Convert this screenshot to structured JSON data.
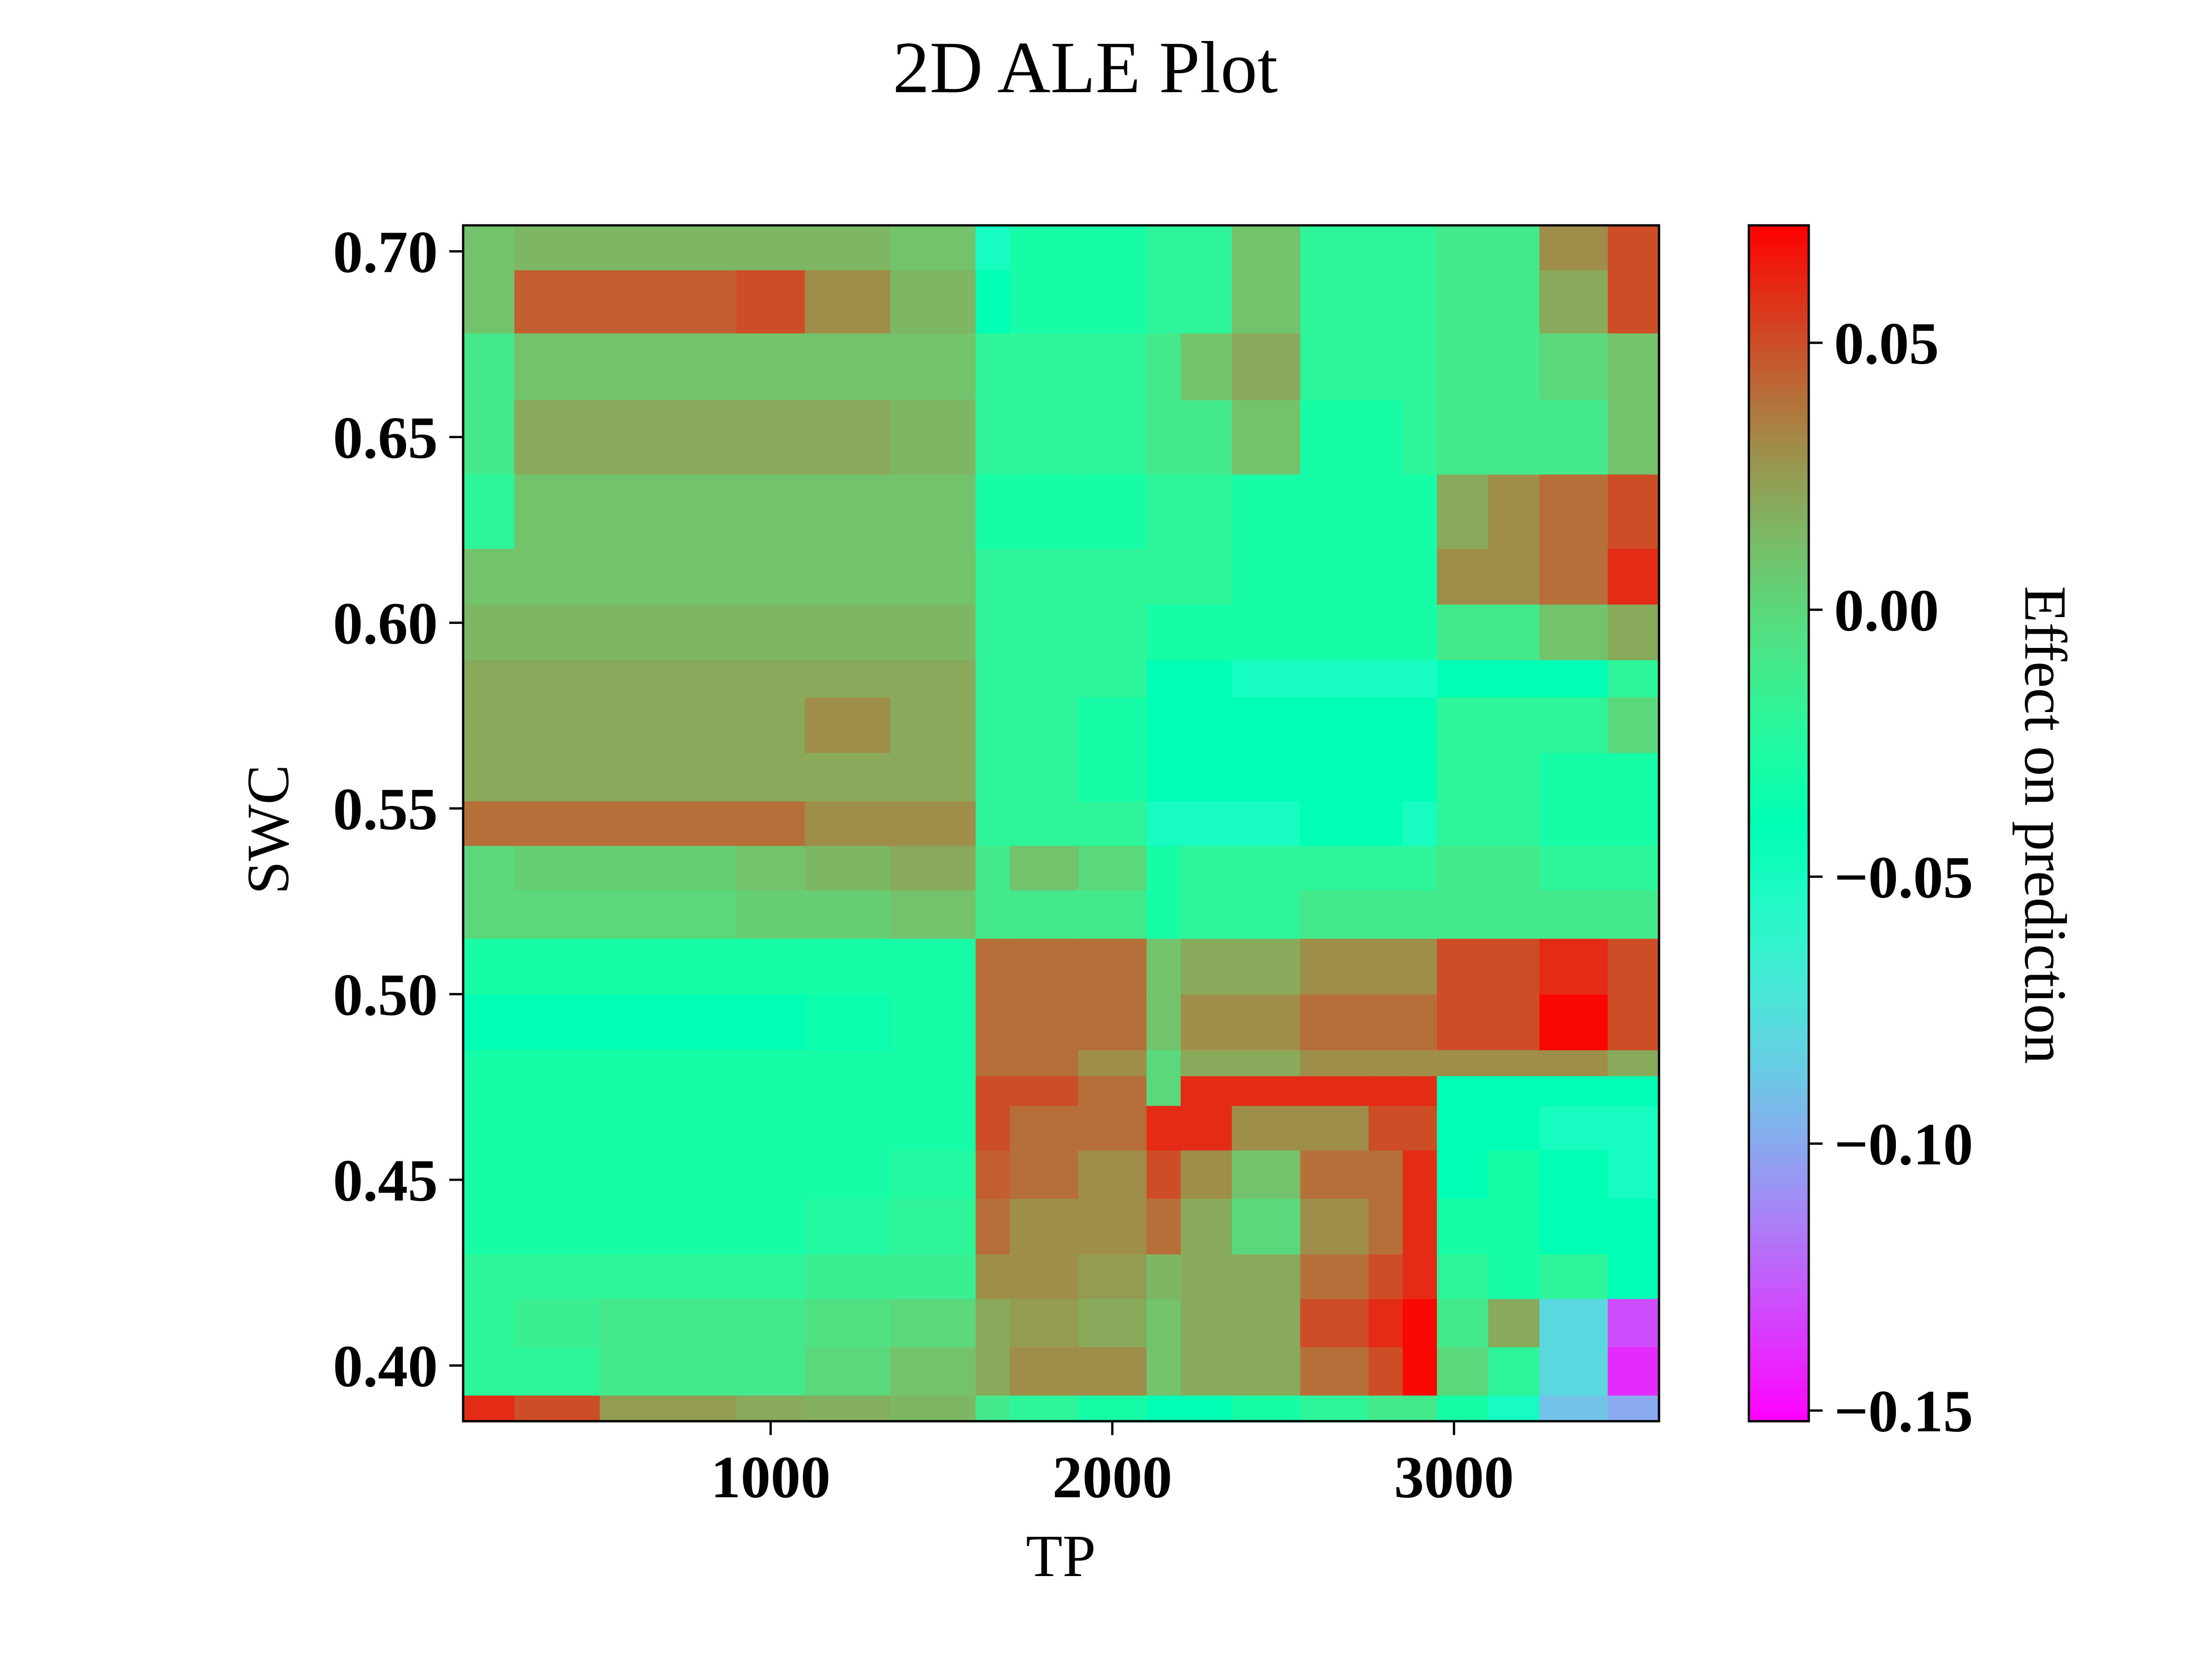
{
  "chart_data": {
    "type": "heatmap",
    "title": "2D ALE Plot",
    "xlabel": "TP",
    "ylabel": "SWC",
    "colorbar_label": "Effect on prediction",
    "colormap": "rainbow",
    "xlim": [
      100,
      3600
    ],
    "ylim": [
      0.385,
      0.707
    ],
    "clim": [
      -0.152,
      0.072
    ],
    "x_ticks": [
      1000,
      2000,
      3000
    ],
    "x_tick_labels": [
      "1000",
      "2000",
      "3000"
    ],
    "y_ticks": [
      0.4,
      0.45,
      0.5,
      0.55,
      0.6,
      0.65,
      0.7
    ],
    "y_tick_labels": [
      "0.40",
      "0.45",
      "0.50",
      "0.55",
      "0.60",
      "0.65",
      "0.70"
    ],
    "colorbar_ticks": [
      -0.15,
      -0.1,
      -0.05,
      0.0,
      0.05
    ],
    "colorbar_tick_labels": [
      "−0.15",
      "−0.10",
      "−0.05",
      "0.00",
      "0.05"
    ],
    "x_edges": [
      100,
      250,
      500,
      900,
      1100,
      1350,
      1600,
      1700,
      1900,
      2100,
      2200,
      2350,
      2550,
      2750,
      2850,
      2950,
      3100,
      3250,
      3450,
      3600
    ],
    "y_edges": [
      0.385,
      0.392,
      0.405,
      0.418,
      0.43,
      0.445,
      0.458,
      0.47,
      0.478,
      0.485,
      0.5,
      0.515,
      0.528,
      0.54,
      0.552,
      0.565,
      0.58,
      0.59,
      0.605,
      0.62,
      0.64,
      0.66,
      0.678,
      0.695,
      0.707
    ],
    "z": [
      [
        0.06,
        0.05,
        0.025,
        0.02,
        0.018,
        0.015,
        -0.01,
        -0.02,
        -0.03,
        -0.04,
        -0.04,
        -0.03,
        -0.02,
        -0.01,
        -0.01,
        -0.03,
        -0.05,
        -0.09,
        -0.1
      ],
      [
        -0.02,
        -0.02,
        -0.01,
        -0.01,
        0.0,
        0.01,
        0.02,
        0.03,
        0.03,
        0.01,
        0.02,
        0.02,
        0.04,
        0.05,
        0.07,
        0.0,
        -0.02,
        -0.08,
        -0.14
      ],
      [
        -0.02,
        -0.015,
        -0.01,
        -0.01,
        -0.005,
        0.0,
        0.02,
        0.025,
        0.02,
        0.01,
        0.02,
        0.02,
        0.05,
        0.06,
        0.07,
        -0.01,
        0.02,
        -0.08,
        -0.13
      ],
      [
        -0.02,
        -0.02,
        -0.02,
        -0.02,
        -0.015,
        -0.015,
        0.03,
        0.03,
        0.025,
        0.015,
        0.02,
        0.02,
        0.04,
        0.05,
        0.06,
        -0.02,
        -0.03,
        -0.02,
        -0.04
      ],
      [
        -0.03,
        -0.03,
        -0.03,
        -0.03,
        -0.025,
        -0.02,
        0.04,
        0.03,
        0.03,
        0.04,
        0.02,
        0.0,
        0.03,
        0.04,
        0.06,
        -0.03,
        -0.03,
        -0.04,
        -0.04
      ],
      [
        -0.03,
        -0.03,
        -0.03,
        -0.03,
        -0.03,
        -0.025,
        0.045,
        0.04,
        0.03,
        0.05,
        0.03,
        0.01,
        0.04,
        0.04,
        0.06,
        -0.04,
        -0.03,
        -0.04,
        -0.05
      ],
      [
        -0.03,
        -0.03,
        -0.03,
        -0.03,
        -0.03,
        -0.03,
        0.05,
        0.04,
        0.04,
        0.06,
        0.06,
        0.03,
        0.03,
        0.05,
        0.05,
        -0.04,
        -0.04,
        -0.05,
        -0.05
      ],
      [
        -0.03,
        -0.03,
        -0.03,
        -0.03,
        -0.03,
        -0.03,
        0.05,
        0.05,
        0.04,
        0.0,
        0.06,
        0.06,
        0.06,
        0.06,
        0.06,
        -0.04,
        -0.04,
        -0.04,
        -0.04
      ],
      [
        -0.03,
        -0.03,
        -0.03,
        -0.03,
        -0.03,
        -0.03,
        0.04,
        0.04,
        0.03,
        0.0,
        0.02,
        0.02,
        0.03,
        0.03,
        0.03,
        0.03,
        0.03,
        0.03,
        0.02
      ],
      [
        -0.04,
        -0.04,
        -0.04,
        -0.04,
        -0.035,
        -0.03,
        0.04,
        0.04,
        0.04,
        0.01,
        0.03,
        0.03,
        0.04,
        0.04,
        0.04,
        0.05,
        0.05,
        0.07,
        0.05
      ],
      [
        -0.03,
        -0.03,
        -0.03,
        -0.03,
        -0.03,
        -0.03,
        0.04,
        0.04,
        0.04,
        0.01,
        0.02,
        0.02,
        0.03,
        0.03,
        0.03,
        0.05,
        0.05,
        0.06,
        0.05
      ],
      [
        0.0,
        0.0,
        0.0,
        0.005,
        0.005,
        0.01,
        -0.01,
        -0.01,
        -0.01,
        -0.03,
        -0.02,
        -0.02,
        -0.01,
        -0.01,
        -0.01,
        -0.01,
        -0.01,
        -0.01,
        -0.01
      ],
      [
        0.0,
        0.005,
        0.005,
        0.01,
        0.015,
        0.02,
        -0.01,
        0.01,
        0.0,
        -0.03,
        -0.02,
        -0.02,
        -0.02,
        -0.02,
        -0.02,
        -0.01,
        -0.01,
        -0.02,
        -0.02
      ],
      [
        0.04,
        0.04,
        0.04,
        0.04,
        0.03,
        0.03,
        -0.02,
        -0.02,
        -0.02,
        -0.05,
        -0.05,
        -0.05,
        -0.04,
        -0.04,
        -0.05,
        -0.02,
        -0.02,
        -0.03,
        -0.03
      ],
      [
        0.02,
        0.02,
        0.02,
        0.02,
        0.02,
        0.02,
        -0.02,
        -0.02,
        -0.03,
        -0.04,
        -0.04,
        -0.04,
        -0.04,
        -0.04,
        -0.04,
        -0.02,
        -0.02,
        -0.03,
        -0.03
      ],
      [
        0.02,
        0.02,
        0.02,
        0.02,
        0.03,
        0.02,
        -0.02,
        -0.02,
        -0.03,
        -0.04,
        -0.04,
        -0.04,
        -0.04,
        -0.04,
        -0.04,
        -0.02,
        -0.02,
        -0.02,
        0.0
      ],
      [
        0.02,
        0.02,
        0.02,
        0.02,
        0.02,
        0.02,
        -0.02,
        -0.02,
        -0.02,
        -0.04,
        -0.04,
        -0.05,
        -0.05,
        -0.05,
        -0.05,
        -0.04,
        -0.04,
        -0.04,
        -0.02
      ],
      [
        0.015,
        0.015,
        0.015,
        0.015,
        0.015,
        0.015,
        -0.02,
        -0.02,
        -0.02,
        -0.03,
        -0.03,
        -0.03,
        -0.03,
        -0.03,
        -0.03,
        -0.01,
        -0.01,
        0.01,
        0.02
      ],
      [
        0.01,
        0.01,
        0.01,
        0.01,
        0.01,
        0.01,
        -0.02,
        -0.02,
        -0.02,
        -0.02,
        -0.02,
        -0.03,
        -0.03,
        -0.03,
        -0.03,
        0.03,
        0.03,
        0.04,
        0.06
      ],
      [
        -0.02,
        0.01,
        0.01,
        0.01,
        0.01,
        0.01,
        -0.03,
        -0.03,
        -0.03,
        -0.02,
        -0.02,
        -0.03,
        -0.03,
        -0.03,
        -0.03,
        0.02,
        0.03,
        0.04,
        0.05
      ],
      [
        -0.01,
        0.02,
        0.02,
        0.02,
        0.02,
        0.015,
        -0.02,
        -0.02,
        -0.02,
        -0.01,
        -0.01,
        0.01,
        -0.03,
        -0.03,
        -0.02,
        -0.01,
        -0.01,
        -0.01,
        0.01
      ],
      [
        -0.01,
        0.01,
        0.01,
        0.01,
        0.01,
        0.01,
        -0.02,
        -0.02,
        -0.02,
        -0.01,
        0.01,
        0.02,
        -0.02,
        -0.02,
        -0.02,
        -0.01,
        -0.01,
        0.0,
        0.01
      ],
      [
        0.01,
        0.045,
        0.045,
        0.05,
        0.03,
        0.015,
        -0.04,
        -0.03,
        -0.03,
        -0.02,
        -0.02,
        0.01,
        -0.02,
        -0.02,
        -0.02,
        -0.01,
        -0.01,
        0.02,
        0.05
      ],
      [
        0.01,
        0.015,
        0.015,
        0.015,
        0.015,
        0.01,
        -0.05,
        -0.03,
        -0.03,
        -0.02,
        -0.02,
        0.01,
        -0.02,
        -0.02,
        -0.02,
        -0.01,
        -0.01,
        0.03,
        0.05
      ]
    ]
  }
}
